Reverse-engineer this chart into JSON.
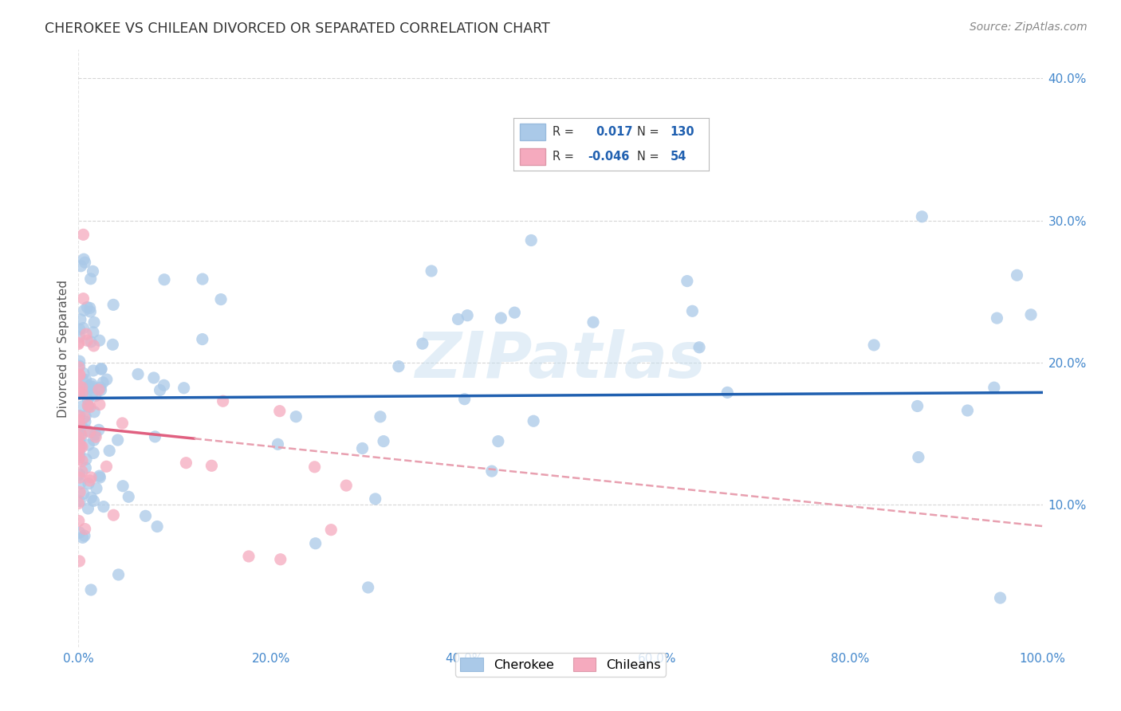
{
  "title": "CHEROKEE VS CHILEAN DIVORCED OR SEPARATED CORRELATION CHART",
  "source": "Source: ZipAtlas.com",
  "ylabel": "Divorced or Separated",
  "watermark": "ZIPatlas",
  "legend_cherokee": "Cherokee",
  "legend_chileans": "Chileans",
  "cherokee_R": 0.017,
  "cherokee_N": 130,
  "chilean_R": -0.046,
  "chilean_N": 54,
  "xlim": [
    0.0,
    1.0
  ],
  "ylim": [
    0.0,
    0.42
  ],
  "cherokee_color": "#aac9e8",
  "chilean_color": "#f5aabe",
  "cherokee_line_color": "#2060b0",
  "chilean_line_solid_color": "#e06080",
  "chilean_line_dash_color": "#e8a0b0",
  "background_color": "#ffffff",
  "grid_color": "#cccccc",
  "title_color": "#333333",
  "source_color": "#888888",
  "tick_color": "#4488cc",
  "stat_color": "#2060b0",
  "stat_r_color": "#333333"
}
